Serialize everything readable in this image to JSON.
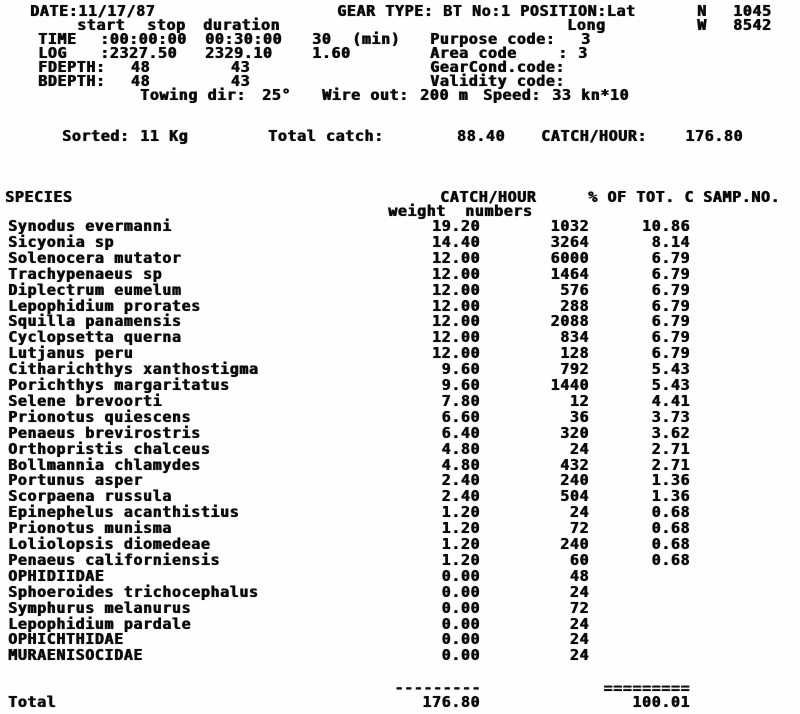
{
  "colors": {
    "ink": "#0b0b0b",
    "paper": "#fefefe"
  },
  "header": {
    "date": "DATE:11/17/87",
    "gear_type": "GEAR TYPE: BT No:1",
    "position_label": "POSITION:Lat",
    "lat_hemisphere": "N",
    "lat_value": "1045",
    "long_label": "Long",
    "long_hemisphere": "W",
    "long_value": "8542",
    "col_start": "start",
    "col_stop": "stop",
    "col_duration": "duration",
    "time_label": "TIME",
    "time_start": ":00:00:00",
    "time_stop": "00:30:00",
    "time_duration": "30",
    "time_unit": "(min)",
    "log_label": "LOG",
    "log_start": ":2327.50",
    "log_stop": "2329.10",
    "log_duration": "1.60",
    "fdepth_label": "FDEPTH:",
    "fdepth_start": "48",
    "fdepth_stop": "43",
    "bdepth_label": "BDEPTH:",
    "bdepth_start": "48",
    "bdepth_stop": "43",
    "purpose_label": "Purpose code:",
    "purpose_value": "3",
    "area_label": "Area code",
    "area_colon": ":",
    "area_value": "3",
    "gearcond_label": "GearCond.code:",
    "validity_label": "Validity code:",
    "towing_label": "Towing dir:",
    "towing_value": "25°",
    "wire_label": "Wire out:",
    "wire_value": "200 m",
    "speed_label": "Speed:",
    "speed_value": "33 kn*10",
    "sorted_label": "Sorted:",
    "sorted_value": "11 Kg",
    "total_catch_label": "Total catch:",
    "total_catch_value": "88.40",
    "catch_hour_label": "CATCH/HOUR:",
    "catch_hour_value": "176.80"
  },
  "table": {
    "species_header": "SPECIES",
    "catch_hour_header": "CATCH/HOUR",
    "pct_header": "% OF TOT. C",
    "samp_header": "SAMP.NO.",
    "weight_subheader": "weight",
    "numbers_subheader": "numbers",
    "rows": [
      {
        "species": "Synodus evermanni",
        "weight": "19.20",
        "numbers": "1032",
        "pct": "10.86",
        "samp": ""
      },
      {
        "species": "Sicyonia sp",
        "weight": "14.40",
        "numbers": "3264",
        "pct": "8.14",
        "samp": ""
      },
      {
        "species": "Solenocera mutator",
        "weight": "12.00",
        "numbers": "6000",
        "pct": "6.79",
        "samp": ""
      },
      {
        "species": "Trachypenaeus sp",
        "weight": "12.00",
        "numbers": "1464",
        "pct": "6.79",
        "samp": ""
      },
      {
        "species": "Diplectrum eumelum",
        "weight": "12.00",
        "numbers": "576",
        "pct": "6.79",
        "samp": ""
      },
      {
        "species": "Lepophidium prorates",
        "weight": "12.00",
        "numbers": "288",
        "pct": "6.79",
        "samp": ""
      },
      {
        "species": "Squilla panamensis",
        "weight": "12.00",
        "numbers": "2088",
        "pct": "6.79",
        "samp": ""
      },
      {
        "species": "Cyclopsetta querna",
        "weight": "12.00",
        "numbers": "834",
        "pct": "6.79",
        "samp": ""
      },
      {
        "species": "Lutjanus peru",
        "weight": "12.00",
        "numbers": "128",
        "pct": "6.79",
        "samp": ""
      },
      {
        "species": "Citharichthys xanthostigma",
        "weight": "9.60",
        "numbers": "792",
        "pct": "5.43",
        "samp": ""
      },
      {
        "species": "Porichthys margaritatus",
        "weight": "9.60",
        "numbers": "1440",
        "pct": "5.43",
        "samp": ""
      },
      {
        "species": "Selene brevoorti",
        "weight": "7.80",
        "numbers": "12",
        "pct": "4.41",
        "samp": ""
      },
      {
        "species": "Prionotus quiescens",
        "weight": "6.60",
        "numbers": "36",
        "pct": "3.73",
        "samp": ""
      },
      {
        "species": "Penaeus brevirostris",
        "weight": "6.40",
        "numbers": "320",
        "pct": "3.62",
        "samp": ""
      },
      {
        "species": "Orthopristis chalceus",
        "weight": "4.80",
        "numbers": "24",
        "pct": "2.71",
        "samp": ""
      },
      {
        "species": "Bollmannia chlamydes",
        "weight": "4.80",
        "numbers": "432",
        "pct": "2.71",
        "samp": ""
      },
      {
        "species": "Portunus asper",
        "weight": "2.40",
        "numbers": "240",
        "pct": "1.36",
        "samp": ""
      },
      {
        "species": "Scorpaena russula",
        "weight": "2.40",
        "numbers": "504",
        "pct": "1.36",
        "samp": ""
      },
      {
        "species": "Epinephelus acanthistius",
        "weight": "1.20",
        "numbers": "24",
        "pct": "0.68",
        "samp": ""
      },
      {
        "species": "Prionotus munisma",
        "weight": "1.20",
        "numbers": "72",
        "pct": "0.68",
        "samp": ""
      },
      {
        "species": "Loliolopsis diomedeae",
        "weight": "1.20",
        "numbers": "240",
        "pct": "0.68",
        "samp": ""
      },
      {
        "species": "Penaeus californiensis",
        "weight": "1.20",
        "numbers": "60",
        "pct": "0.68",
        "samp": ""
      },
      {
        "species": "OPHIDIIDAE",
        "weight": "0.00",
        "numbers": "48",
        "pct": "",
        "samp": ""
      },
      {
        "species": "Sphoeroides trichocephalus",
        "weight": "0.00",
        "numbers": "24",
        "pct": "",
        "samp": ""
      },
      {
        "species": "Symphurus melanurus",
        "weight": "0.00",
        "numbers": "72",
        "pct": "",
        "samp": ""
      },
      {
        "species": "Lepophidium pardale",
        "weight": "0.00",
        "numbers": "24",
        "pct": "",
        "samp": ""
      },
      {
        "species": "OPHICHTHIDAE",
        "weight": "0.00",
        "numbers": "24",
        "pct": "",
        "samp": ""
      },
      {
        "species": "MURAENISOCIDAE",
        "weight": "0.00",
        "numbers": "24",
        "pct": "",
        "samp": ""
      }
    ],
    "dash_weight": "---------",
    "dash_pct": "=========",
    "total_label": "Total",
    "total_weight": "176.80",
    "total_pct": "100.01"
  }
}
